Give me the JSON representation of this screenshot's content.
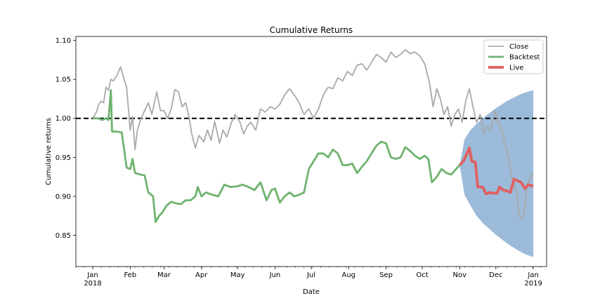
{
  "chart_data": {
    "type": "line",
    "title": "Cumulative Returns",
    "xlabel": "Date",
    "ylabel": "Cumulative returns",
    "xlim": [
      "2017-12-18",
      "2019-01-12"
    ],
    "ylim": [
      0.81,
      1.105
    ],
    "x_ticks": [
      {
        "date": "2018-01-01",
        "label": "Jan",
        "sublabel": "2018"
      },
      {
        "date": "2018-02-01",
        "label": "Feb",
        "sublabel": ""
      },
      {
        "date": "2018-03-01",
        "label": "Mar",
        "sublabel": ""
      },
      {
        "date": "2018-04-01",
        "label": "Apr",
        "sublabel": ""
      },
      {
        "date": "2018-05-01",
        "label": "May",
        "sublabel": ""
      },
      {
        "date": "2018-06-01",
        "label": "Jun",
        "sublabel": ""
      },
      {
        "date": "2018-07-01",
        "label": "Jul",
        "sublabel": ""
      },
      {
        "date": "2018-08-01",
        "label": "Aug",
        "sublabel": ""
      },
      {
        "date": "2018-09-01",
        "label": "Sep",
        "sublabel": ""
      },
      {
        "date": "2018-10-01",
        "label": "Oct",
        "sublabel": ""
      },
      {
        "date": "2018-11-01",
        "label": "Nov",
        "sublabel": ""
      },
      {
        "date": "2018-12-01",
        "label": "Dec",
        "sublabel": ""
      },
      {
        "date": "2019-01-01",
        "label": "Jan",
        "sublabel": "2019"
      }
    ],
    "y_ticks": [
      {
        "value": 0.85,
        "label": "0.85"
      },
      {
        "value": 0.9,
        "label": "0.90"
      },
      {
        "value": 0.95,
        "label": "0.95"
      },
      {
        "value": 1.0,
        "label": "1.00"
      },
      {
        "value": 1.05,
        "label": "1.05"
      },
      {
        "value": 1.1,
        "label": "1.10"
      }
    ],
    "reference_line": {
      "y": 1.0,
      "style": "dashed",
      "color": "#000000"
    },
    "legend": {
      "position": "top-right",
      "entries": [
        "Close",
        "Backtest",
        "Live"
      ]
    },
    "grid": false,
    "series": [
      {
        "name": "Close",
        "color": "#a9a9a9",
        "points": [
          [
            "2018-01-01",
            1.0
          ],
          [
            "2018-01-04",
            1.008
          ],
          [
            "2018-01-06",
            1.018
          ],
          [
            "2018-01-08",
            1.022
          ],
          [
            "2018-01-10",
            1.02
          ],
          [
            "2018-01-12",
            1.04
          ],
          [
            "2018-01-14",
            1.036
          ],
          [
            "2018-01-16",
            1.05
          ],
          [
            "2018-01-18",
            1.048
          ],
          [
            "2018-01-21",
            1.055
          ],
          [
            "2018-01-24",
            1.066
          ],
          [
            "2018-01-27",
            1.05
          ],
          [
            "2018-01-29",
            1.04
          ],
          [
            "2018-02-01",
            0.985
          ],
          [
            "2018-02-03",
            1.002
          ],
          [
            "2018-02-05",
            0.96
          ],
          [
            "2018-02-07",
            0.985
          ],
          [
            "2018-02-10",
            1.0
          ],
          [
            "2018-02-13",
            1.01
          ],
          [
            "2018-02-16",
            1.02
          ],
          [
            "2018-02-19",
            1.005
          ],
          [
            "2018-02-23",
            1.034
          ],
          [
            "2018-02-26",
            1.01
          ],
          [
            "2018-03-01",
            1.01
          ],
          [
            "2018-03-04",
            1.0
          ],
          [
            "2018-03-07",
            1.012
          ],
          [
            "2018-03-10",
            1.037
          ],
          [
            "2018-03-13",
            1.034
          ],
          [
            "2018-03-16",
            1.015
          ],
          [
            "2018-03-19",
            1.02
          ],
          [
            "2018-03-22",
            1.0
          ],
          [
            "2018-03-24",
            0.98
          ],
          [
            "2018-03-27",
            0.962
          ],
          [
            "2018-03-30",
            0.978
          ],
          [
            "2018-04-03",
            0.97
          ],
          [
            "2018-04-06",
            0.985
          ],
          [
            "2018-04-09",
            0.972
          ],
          [
            "2018-04-12",
            0.996
          ],
          [
            "2018-04-16",
            0.968
          ],
          [
            "2018-04-19",
            0.985
          ],
          [
            "2018-04-22",
            0.976
          ],
          [
            "2018-04-26",
            0.995
          ],
          [
            "2018-04-29",
            1.005
          ],
          [
            "2018-05-03",
            0.995
          ],
          [
            "2018-05-06",
            0.98
          ],
          [
            "2018-05-09",
            0.99
          ],
          [
            "2018-05-12",
            0.995
          ],
          [
            "2018-05-16",
            0.985
          ],
          [
            "2018-05-20",
            1.012
          ],
          [
            "2018-05-24",
            1.008
          ],
          [
            "2018-05-28",
            1.015
          ],
          [
            "2018-06-01",
            1.012
          ],
          [
            "2018-06-05",
            1.018
          ],
          [
            "2018-06-09",
            1.03
          ],
          [
            "2018-06-13",
            1.038
          ],
          [
            "2018-06-17",
            1.03
          ],
          [
            "2018-06-21",
            1.02
          ],
          [
            "2018-06-25",
            1.005
          ],
          [
            "2018-06-29",
            1.012
          ],
          [
            "2018-07-03",
            1.0
          ],
          [
            "2018-07-07",
            1.012
          ],
          [
            "2018-07-11",
            1.03
          ],
          [
            "2018-07-15",
            1.04
          ],
          [
            "2018-07-19",
            1.038
          ],
          [
            "2018-07-23",
            1.052
          ],
          [
            "2018-07-27",
            1.048
          ],
          [
            "2018-07-31",
            1.06
          ],
          [
            "2018-08-04",
            1.055
          ],
          [
            "2018-08-08",
            1.068
          ],
          [
            "2018-08-12",
            1.07
          ],
          [
            "2018-08-16",
            1.062
          ],
          [
            "2018-08-20",
            1.072
          ],
          [
            "2018-08-24",
            1.082
          ],
          [
            "2018-08-28",
            1.078
          ],
          [
            "2018-09-01",
            1.072
          ],
          [
            "2018-09-05",
            1.085
          ],
          [
            "2018-09-09",
            1.078
          ],
          [
            "2018-09-13",
            1.082
          ],
          [
            "2018-09-17",
            1.088
          ],
          [
            "2018-09-21",
            1.083
          ],
          [
            "2018-09-25",
            1.085
          ],
          [
            "2018-09-29",
            1.08
          ],
          [
            "2018-10-03",
            1.07
          ],
          [
            "2018-10-07",
            1.045
          ],
          [
            "2018-10-10",
            1.015
          ],
          [
            "2018-10-13",
            1.038
          ],
          [
            "2018-10-16",
            1.025
          ],
          [
            "2018-10-19",
            1.005
          ],
          [
            "2018-10-22",
            1.015
          ],
          [
            "2018-10-25",
            0.99
          ],
          [
            "2018-10-28",
            1.005
          ],
          [
            "2018-10-31",
            1.012
          ],
          [
            "2018-11-03",
            0.995
          ],
          [
            "2018-11-06",
            1.022
          ],
          [
            "2018-11-09",
            1.038
          ],
          [
            "2018-11-12",
            1.015
          ],
          [
            "2018-11-15",
            0.995
          ],
          [
            "2018-11-18",
            1.005
          ],
          [
            "2018-11-21",
            0.98
          ],
          [
            "2018-11-24",
            0.99
          ],
          [
            "2018-11-27",
            0.985
          ],
          [
            "2018-11-30",
            1.01
          ],
          [
            "2018-12-03",
            0.995
          ],
          [
            "2018-12-06",
            0.985
          ],
          [
            "2018-12-09",
            0.965
          ],
          [
            "2018-12-12",
            0.945
          ],
          [
            "2018-12-15",
            0.92
          ],
          [
            "2018-12-18",
            0.905
          ],
          [
            "2018-12-21",
            0.872
          ],
          [
            "2018-12-24",
            0.872
          ],
          [
            "2018-12-27",
            0.915
          ],
          [
            "2018-12-30",
            0.925
          ],
          [
            "2019-01-01",
            0.93
          ]
        ]
      },
      {
        "name": "Backtest",
        "color": "#6fb36f",
        "points": [
          [
            "2018-01-01",
            1.0
          ],
          [
            "2018-01-05",
            1.0
          ],
          [
            "2018-01-09",
            0.998
          ],
          [
            "2018-01-12",
            1.0
          ],
          [
            "2018-01-14",
            0.998
          ],
          [
            "2018-01-16",
            1.036
          ],
          [
            "2018-01-17",
            0.983
          ],
          [
            "2018-01-21",
            0.983
          ],
          [
            "2018-01-25",
            0.982
          ],
          [
            "2018-01-27",
            0.96
          ],
          [
            "2018-01-29",
            0.937
          ],
          [
            "2018-02-01",
            0.935
          ],
          [
            "2018-02-03",
            0.948
          ],
          [
            "2018-02-05",
            0.93
          ],
          [
            "2018-02-09",
            0.928
          ],
          [
            "2018-02-13",
            0.927
          ],
          [
            "2018-02-16",
            0.905
          ],
          [
            "2018-02-20",
            0.9
          ],
          [
            "2018-02-22",
            0.867
          ],
          [
            "2018-02-25",
            0.875
          ],
          [
            "2018-02-28",
            0.88
          ],
          [
            "2018-03-03",
            0.888
          ],
          [
            "2018-03-07",
            0.893
          ],
          [
            "2018-03-11",
            0.891
          ],
          [
            "2018-03-15",
            0.89
          ],
          [
            "2018-03-19",
            0.895
          ],
          [
            "2018-03-23",
            0.895
          ],
          [
            "2018-03-27",
            0.9
          ],
          [
            "2018-03-29",
            0.912
          ],
          [
            "2018-04-01",
            0.9
          ],
          [
            "2018-04-05",
            0.905
          ],
          [
            "2018-04-10",
            0.902
          ],
          [
            "2018-04-15",
            0.9
          ],
          [
            "2018-04-20",
            0.915
          ],
          [
            "2018-04-25",
            0.912
          ],
          [
            "2018-05-01",
            0.913
          ],
          [
            "2018-05-05",
            0.915
          ],
          [
            "2018-05-10",
            0.912
          ],
          [
            "2018-05-15",
            0.908
          ],
          [
            "2018-05-20",
            0.918
          ],
          [
            "2018-05-25",
            0.895
          ],
          [
            "2018-05-29",
            0.908
          ],
          [
            "2018-06-01",
            0.91
          ],
          [
            "2018-06-05",
            0.892
          ],
          [
            "2018-06-09",
            0.9
          ],
          [
            "2018-06-13",
            0.905
          ],
          [
            "2018-06-17",
            0.9
          ],
          [
            "2018-06-21",
            0.902
          ],
          [
            "2018-06-25",
            0.905
          ],
          [
            "2018-06-29",
            0.935
          ],
          [
            "2018-07-03",
            0.945
          ],
          [
            "2018-07-07",
            0.955
          ],
          [
            "2018-07-11",
            0.955
          ],
          [
            "2018-07-15",
            0.95
          ],
          [
            "2018-07-19",
            0.96
          ],
          [
            "2018-07-23",
            0.955
          ],
          [
            "2018-07-27",
            0.94
          ],
          [
            "2018-07-31",
            0.94
          ],
          [
            "2018-08-04",
            0.942
          ],
          [
            "2018-08-08",
            0.93
          ],
          [
            "2018-08-12",
            0.938
          ],
          [
            "2018-08-16",
            0.945
          ],
          [
            "2018-08-20",
            0.955
          ],
          [
            "2018-08-24",
            0.965
          ],
          [
            "2018-08-28",
            0.97
          ],
          [
            "2018-09-01",
            0.968
          ],
          [
            "2018-09-05",
            0.95
          ],
          [
            "2018-09-09",
            0.948
          ],
          [
            "2018-09-13",
            0.95
          ],
          [
            "2018-09-17",
            0.963
          ],
          [
            "2018-09-21",
            0.958
          ],
          [
            "2018-09-25",
            0.952
          ],
          [
            "2018-09-29",
            0.948
          ],
          [
            "2018-10-03",
            0.952
          ],
          [
            "2018-10-06",
            0.948
          ],
          [
            "2018-10-09",
            0.918
          ],
          [
            "2018-10-13",
            0.925
          ],
          [
            "2018-10-17",
            0.935
          ],
          [
            "2018-10-21",
            0.93
          ],
          [
            "2018-10-25",
            0.928
          ],
          [
            "2018-10-29",
            0.935
          ],
          [
            "2018-11-01",
            0.94
          ]
        ]
      },
      {
        "name": "Live",
        "color": "#e06060",
        "points": [
          [
            "2018-11-01",
            0.94
          ],
          [
            "2018-11-04",
            0.945
          ],
          [
            "2018-11-07",
            0.955
          ],
          [
            "2018-11-09",
            0.962
          ],
          [
            "2018-11-11",
            0.945
          ],
          [
            "2018-11-14",
            0.944
          ],
          [
            "2018-11-16",
            0.912
          ],
          [
            "2018-11-20",
            0.912
          ],
          [
            "2018-11-23",
            0.903
          ],
          [
            "2018-11-26",
            0.905
          ],
          [
            "2018-11-29",
            0.904
          ],
          [
            "2018-12-02",
            0.904
          ],
          [
            "2018-12-04",
            0.912
          ],
          [
            "2018-12-07",
            0.908
          ],
          [
            "2018-12-10",
            0.907
          ],
          [
            "2018-12-13",
            0.905
          ],
          [
            "2018-12-16",
            0.922
          ],
          [
            "2018-12-19",
            0.92
          ],
          [
            "2018-12-22",
            0.918
          ],
          [
            "2018-12-25",
            0.91
          ],
          [
            "2018-12-28",
            0.915
          ],
          [
            "2019-01-01",
            0.913
          ]
        ]
      }
    ],
    "confidence_band": {
      "color": "#5a8cc0",
      "points": [
        [
          "2018-11-01",
          0.94,
          0.94
        ],
        [
          "2018-11-05",
          0.973,
          0.902
        ],
        [
          "2018-11-10",
          0.985,
          0.888
        ],
        [
          "2018-11-15",
          0.993,
          0.875
        ],
        [
          "2018-11-20",
          1.0,
          0.866
        ],
        [
          "2018-11-25",
          1.006,
          0.859
        ],
        [
          "2018-11-30",
          1.012,
          0.852
        ],
        [
          "2018-12-05",
          1.017,
          0.846
        ],
        [
          "2018-12-10",
          1.022,
          0.84
        ],
        [
          "2018-12-15",
          1.026,
          0.835
        ],
        [
          "2018-12-20",
          1.03,
          0.83
        ],
        [
          "2018-12-25",
          1.033,
          0.826
        ],
        [
          "2019-01-01",
          1.036,
          0.822
        ]
      ]
    }
  }
}
